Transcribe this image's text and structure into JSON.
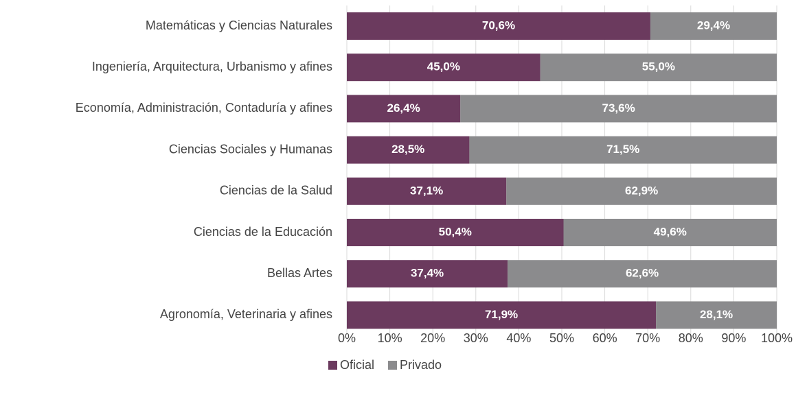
{
  "chart_data": {
    "type": "stacked_barh",
    "categories": [
      "Matemáticas y Ciencias Naturales",
      "Ingeniería, Arquitectura, Urbanismo y afines",
      "Economía, Administración, Contaduría y afines",
      "Ciencias Sociales y Humanas",
      "Ciencias de la Salud",
      "Ciencias de la Educación",
      "Bellas Artes",
      "Agronomía, Veterinaria y afines"
    ],
    "series": [
      {
        "name": "Oficial",
        "color": "#6b3a5e",
        "values": [
          70.6,
          45.0,
          26.4,
          28.5,
          37.1,
          50.4,
          37.4,
          71.9
        ],
        "value_labels": [
          "70,6%",
          "45,0%",
          "26,4%",
          "28,5%",
          "37,1%",
          "50,4%",
          "37,4%",
          "71,9%"
        ]
      },
      {
        "name": "Privado",
        "color": "#8b8b8d",
        "values": [
          29.4,
          55.0,
          73.6,
          71.5,
          62.9,
          49.6,
          62.6,
          28.1
        ],
        "value_labels": [
          "29,4%",
          "55,0%",
          "73,6%",
          "71,5%",
          "62,9%",
          "49,6%",
          "62,6%",
          "28,1%"
        ]
      }
    ],
    "xlim": [
      0,
      100
    ],
    "xticks": [
      {
        "value": 0,
        "label": "0%"
      },
      {
        "value": 10,
        "label": "10%"
      },
      {
        "value": 20,
        "label": "20%"
      },
      {
        "value": 30,
        "label": "30%"
      },
      {
        "value": 40,
        "label": "40%"
      },
      {
        "value": 50,
        "label": "50%"
      },
      {
        "value": 60,
        "label": "60%"
      },
      {
        "value": 70,
        "label": "70%"
      },
      {
        "value": 80,
        "label": "80%"
      },
      {
        "value": 90,
        "label": "90%"
      },
      {
        "value": 100,
        "label": "100%"
      }
    ],
    "grid": true,
    "legend": "bottom"
  }
}
